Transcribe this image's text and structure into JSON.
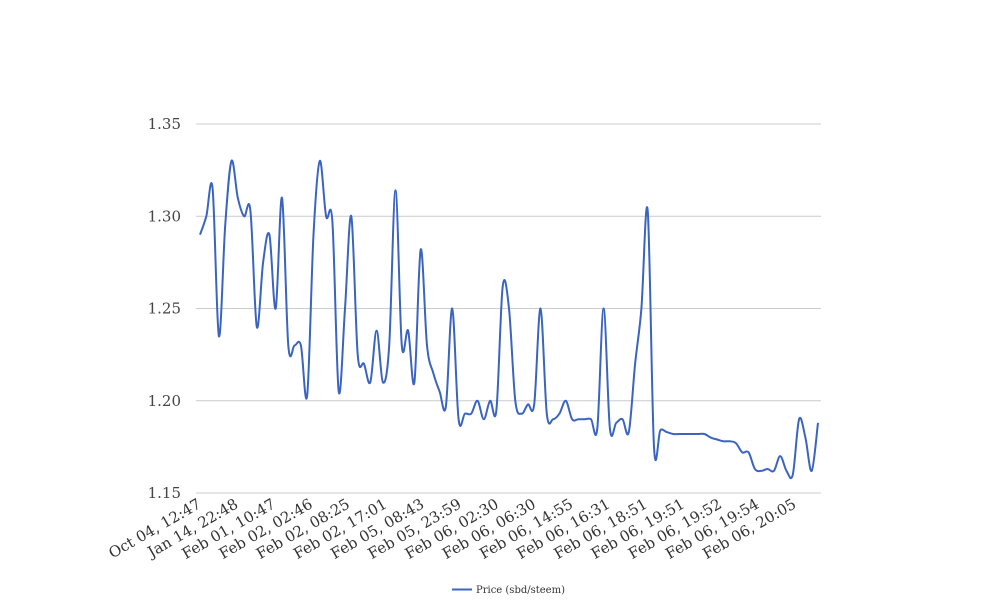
{
  "chart_data": {
    "type": "line",
    "title": "",
    "xlabel": "",
    "ylabel": "",
    "ylim": [
      1.15,
      1.35
    ],
    "yticks": [
      "1.35",
      "1.30",
      "1.25",
      "1.20",
      "1.15"
    ],
    "xticks": [
      "Oct 04, 12:47",
      "Jan 14, 22:48",
      "Feb 01, 10:47",
      "Feb 02, 02:46",
      "Feb 02, 08:25",
      "Feb 02, 17:01",
      "Feb 05, 08:43",
      "Feb 05, 23:59",
      "Feb 06, 02:30",
      "Feb 06, 06:30",
      "Feb 06, 14:55",
      "Feb 06, 16:31",
      "Feb 06, 18:51",
      "Feb 06, 19:51",
      "Feb 06, 19:52",
      "Feb 06, 19:54",
      "Feb 06, 20:05"
    ],
    "grid": true,
    "legend_position": "bottom",
    "series": [
      {
        "name": "Price (sbd/steem)",
        "color": "#3a64c0",
        "values": [
          1.29,
          1.3,
          1.315,
          1.235,
          1.295,
          1.33,
          1.31,
          1.3,
          1.303,
          1.24,
          1.275,
          1.29,
          1.25,
          1.31,
          1.23,
          1.23,
          1.23,
          1.203,
          1.29,
          1.33,
          1.3,
          1.297,
          1.205,
          1.25,
          1.3,
          1.225,
          1.22,
          1.21,
          1.238,
          1.21,
          1.23,
          1.314,
          1.23,
          1.238,
          1.21,
          1.282,
          1.23,
          1.215,
          1.205,
          1.197,
          1.25,
          1.19,
          1.193,
          1.193,
          1.2,
          1.19,
          1.2,
          1.195,
          1.262,
          1.25,
          1.2,
          1.193,
          1.198,
          1.198,
          1.25,
          1.193,
          1.19,
          1.193,
          1.2,
          1.19,
          1.19,
          1.19,
          1.19,
          1.185,
          1.25,
          1.185,
          1.188,
          1.19,
          1.183,
          1.22,
          1.25,
          1.303,
          1.175,
          1.184,
          1.183,
          1.182,
          1.182,
          1.182,
          1.182,
          1.182,
          1.182,
          1.18,
          1.179,
          1.178,
          1.178,
          1.177,
          1.172,
          1.172,
          1.163,
          1.162,
          1.163,
          1.162,
          1.17,
          1.162,
          1.16,
          1.19,
          1.18,
          1.162,
          1.188
        ]
      }
    ]
  }
}
